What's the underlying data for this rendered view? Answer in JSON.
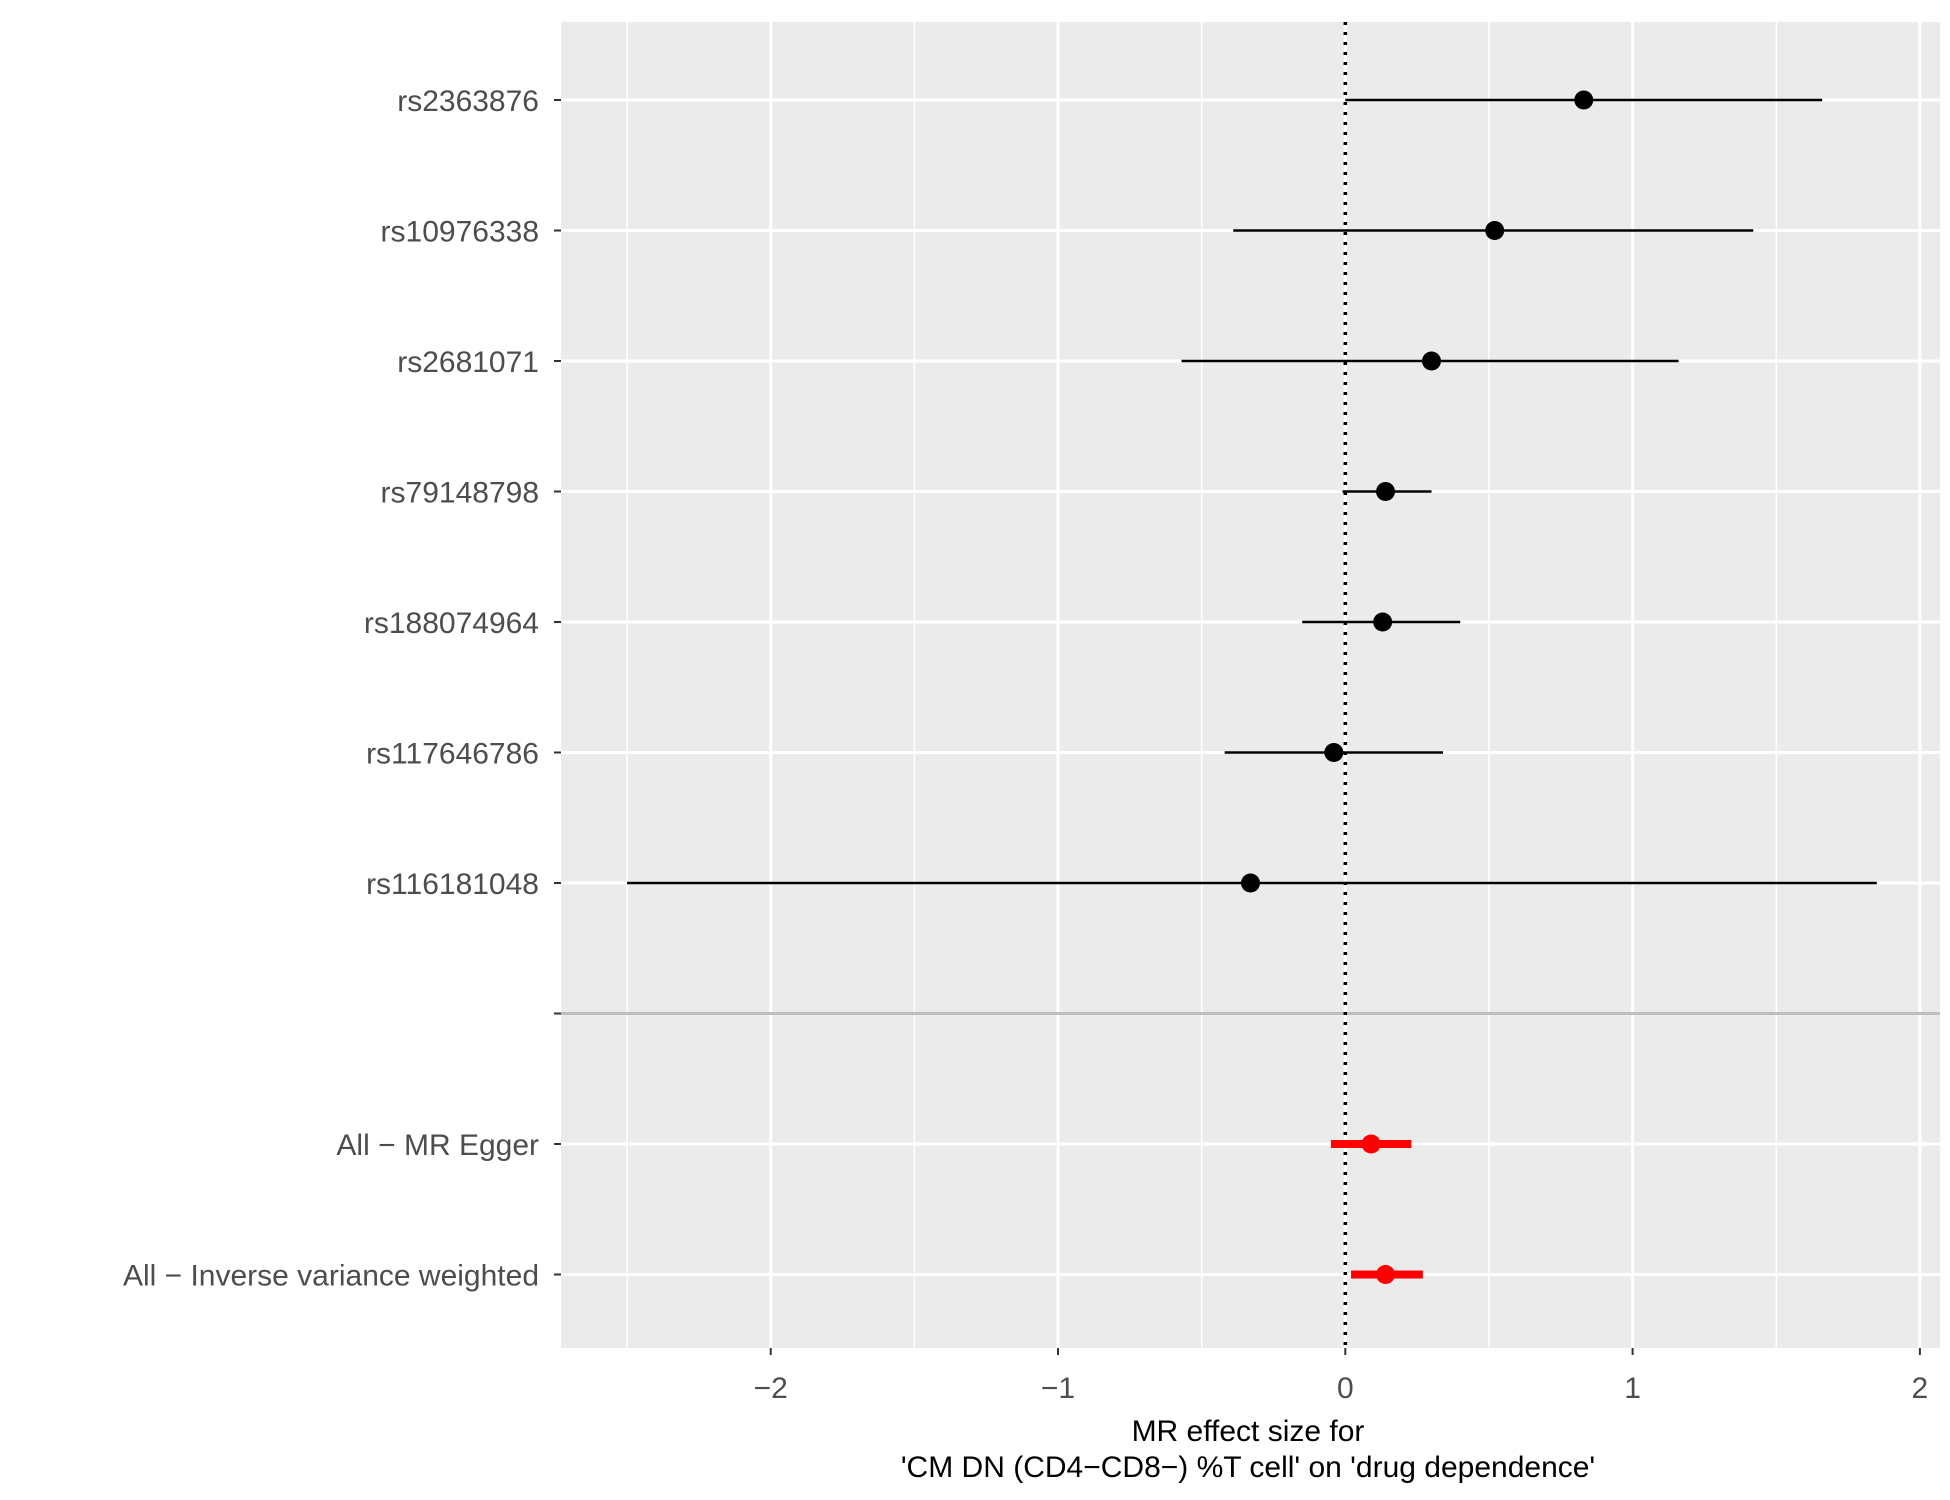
{
  "chart_data": {
    "type": "scatter",
    "subtype": "forest",
    "xlabel_line1": "MR effect size for",
    "xlabel_line2": "'CM DN (CD4−CD8−) %T cell' on 'drug dependence'",
    "xlim": [
      -2.73,
      2.07
    ],
    "x_ticks": [
      -2,
      -1,
      0,
      1,
      2
    ],
    "x_tick_labels": [
      "−2",
      "−1",
      "0",
      "1",
      "2"
    ],
    "reference_line_x": 0,
    "grid": true,
    "categories": [
      "rs2363876",
      "rs10976338",
      "rs2681071",
      "rs79148798",
      "rs188074964",
      "rs117646786",
      "rs116181048",
      "",
      "All − MR Egger",
      "All − Inverse variance weighted"
    ],
    "series": [
      {
        "group": "snp",
        "color": "#000000",
        "points": [
          {
            "label": "rs2363876",
            "estimate": 0.83,
            "lower": 0.0,
            "upper": 1.66
          },
          {
            "label": "rs10976338",
            "estimate": 0.52,
            "lower": -0.39,
            "upper": 1.42
          },
          {
            "label": "rs2681071",
            "estimate": 0.3,
            "lower": -0.57,
            "upper": 1.16
          },
          {
            "label": "rs79148798",
            "estimate": 0.14,
            "lower": -0.01,
            "upper": 0.3
          },
          {
            "label": "rs188074964",
            "estimate": 0.13,
            "lower": -0.15,
            "upper": 0.4
          },
          {
            "label": "rs117646786",
            "estimate": -0.04,
            "lower": -0.42,
            "upper": 0.34
          },
          {
            "label": "rs116181048",
            "estimate": -0.33,
            "lower": -2.5,
            "upper": 1.85
          }
        ]
      },
      {
        "group": "summary",
        "color": "#ff0000",
        "points": [
          {
            "label": "All − MR Egger",
            "estimate": 0.09,
            "lower": -0.05,
            "upper": 0.23
          },
          {
            "label": "All − Inverse variance weighted",
            "estimate": 0.14,
            "lower": 0.02,
            "upper": 0.27
          }
        ]
      }
    ],
    "panel_background": "#ebebeb",
    "grid_color": "#ffffff",
    "separator_color": "#bebebe"
  }
}
